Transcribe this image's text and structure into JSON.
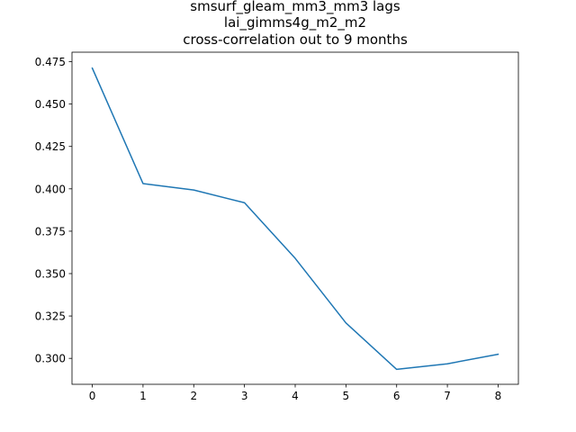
{
  "chart_data": {
    "type": "line",
    "title_lines": [
      "smsurf_gleam_mm3_mm3 lags",
      "lai_gimms4g_m2_m2",
      "cross-correlation out to 9 months"
    ],
    "xlabel": "",
    "ylabel": "",
    "x": [
      0,
      1,
      2,
      3,
      4,
      5,
      6,
      7,
      8
    ],
    "series": [
      {
        "color": "#1f77b4",
        "values": [
          0.4712,
          0.4031,
          0.3993,
          0.3918,
          0.359,
          0.3209,
          0.2935,
          0.2968,
          0.3024
        ]
      }
    ],
    "xlim": [
      -0.4,
      8.4
    ],
    "ylim": [
      0.2847,
      0.4806
    ],
    "xticks": [
      0,
      1,
      2,
      3,
      4,
      5,
      6,
      7,
      8
    ],
    "xtick_labels": [
      "0",
      "1",
      "2",
      "3",
      "4",
      "5",
      "6",
      "7",
      "8"
    ],
    "yticks": [
      0.3,
      0.325,
      0.35,
      0.375,
      0.4,
      0.425,
      0.45,
      0.475
    ],
    "ytick_labels": [
      "0.300",
      "0.325",
      "0.350",
      "0.375",
      "0.400",
      "0.425",
      "0.450",
      "0.475"
    ],
    "grid": false,
    "legend": "none"
  }
}
